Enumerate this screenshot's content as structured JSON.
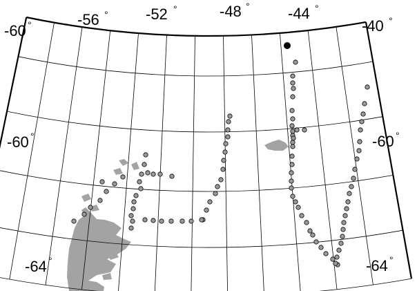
{
  "map": {
    "projection": "conic",
    "top_labels": [
      {
        "text": "-60",
        "deg": "°"
      },
      {
        "text": "-56",
        "deg": "°"
      },
      {
        "text": "-52",
        "deg": "°"
      },
      {
        "text": "-48",
        "deg": "°"
      },
      {
        "text": "-44",
        "deg": "°"
      },
      {
        "text": "-40",
        "deg": "°"
      }
    ],
    "left_labels": [
      {
        "text": "-60",
        "deg": "°"
      },
      {
        "text": "-64",
        "deg": "°"
      }
    ],
    "right_labels": [
      {
        "text": "-60",
        "deg": "°"
      },
      {
        "text": "-64",
        "deg": "°"
      }
    ],
    "colors": {
      "observation_fill": "#9a9a9a",
      "land_fill": "#a3a3a3",
      "origin_marker": "#000000"
    }
  }
}
